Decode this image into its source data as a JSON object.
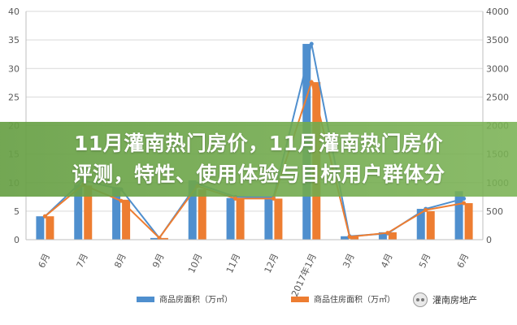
{
  "chart_data": {
    "type": "bar+line",
    "categories": [
      "6月",
      "7月",
      "8月",
      "9月",
      "10月",
      "11月",
      "12月",
      "2017年1月",
      "3月",
      "4月",
      "5月",
      "6月"
    ],
    "series": [
      {
        "name": "商品房面积（万㎡）",
        "type": "bar",
        "axis": "left",
        "color": "#4f8fce",
        "values": [
          4.1,
          9.6,
          9.2,
          0.3,
          10.4,
          7.3,
          7.2,
          34.3,
          0.6,
          1.3,
          5.4,
          8.5
        ]
      },
      {
        "name": "商品住房面积（万㎡）",
        "type": "bar",
        "axis": "left",
        "color": "#ed7d31",
        "values": [
          4.1,
          9.5,
          7.0,
          0.3,
          8.8,
          7.2,
          7.2,
          27.6,
          0.5,
          1.3,
          5.0,
          6.4
        ]
      },
      {
        "name": "",
        "type": "line",
        "axis": "left",
        "color": "#4f8fce",
        "values": [
          4.1,
          10.4,
          8.8,
          0.3,
          9.8,
          7.5,
          7.4,
          34.3,
          0.6,
          1.1,
          5.4,
          7.2
        ]
      },
      {
        "name": "",
        "type": "line",
        "axis": "left",
        "color": "#ed7d31",
        "values": [
          4.1,
          9.6,
          6.8,
          0.3,
          9.4,
          7.2,
          7.2,
          27.6,
          0.5,
          1.2,
          5.2,
          6.4
        ]
      }
    ],
    "ylim_left": [
      0,
      40
    ],
    "yticks_left": [
      0,
      5,
      10,
      15,
      20,
      25,
      30,
      35,
      40
    ],
    "ylim_right": [
      0,
      4000
    ],
    "yticks_right": [
      0,
      500,
      1000,
      1500,
      2000,
      2500,
      3000,
      3500,
      4000
    ],
    "grid": true,
    "legend_position": "bottom"
  },
  "banner": {
    "line1": "11月灌南热门房价，11月灌南热门房价",
    "line2": "评测，特性、使用体验与目标用户群体分"
  },
  "watermark": {
    "text": "灌南房地产",
    "icon": "wechat-icon"
  }
}
